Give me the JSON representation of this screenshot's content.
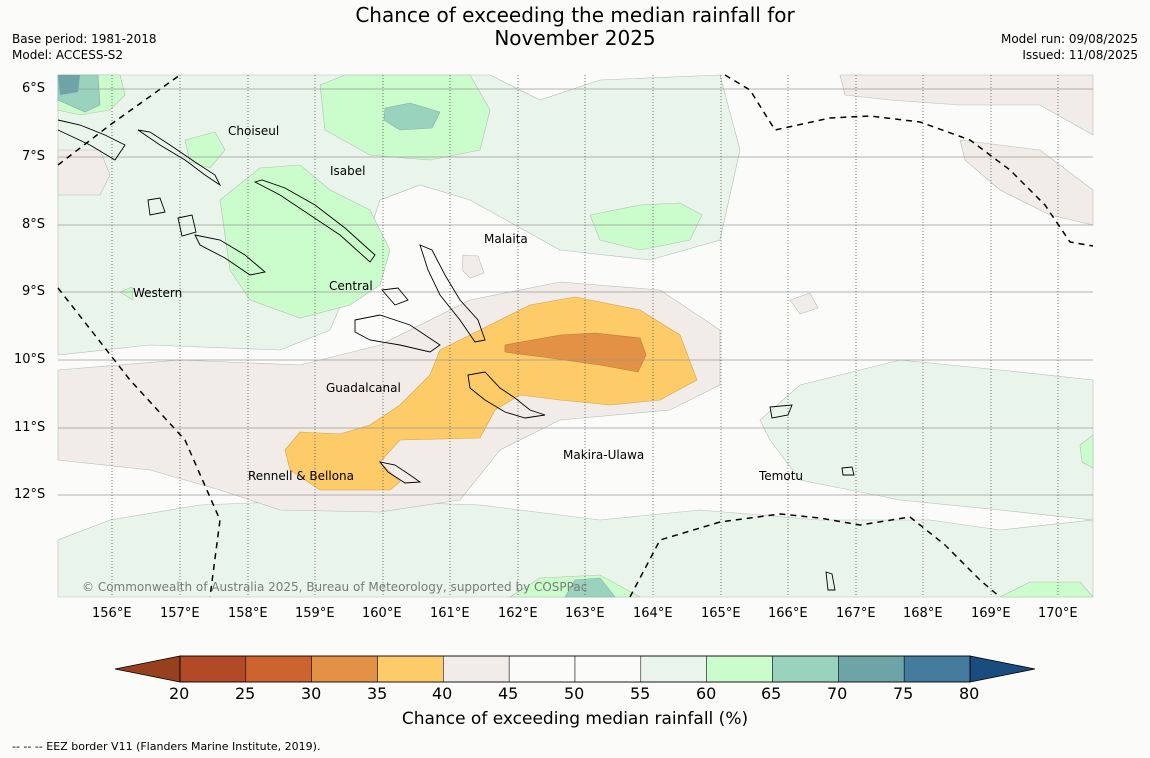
{
  "title": {
    "line1": "Chance of exceeding the median rainfall for",
    "line2": "November 2025"
  },
  "meta_left": {
    "base_period": "Base period: 1981-2018",
    "model": "Model: ACCESS-S2"
  },
  "meta_right": {
    "model_run": "Model run: 09/08/2025",
    "issued": "Issued: 11/08/2025"
  },
  "lat_labels": [
    "6°S",
    "7°S",
    "8°S",
    "9°S",
    "10°S",
    "11°S",
    "12°S"
  ],
  "lon_labels": [
    "156°E",
    "157°E",
    "158°E",
    "159°E",
    "160°E",
    "161°E",
    "162°E",
    "163°E",
    "164°E",
    "165°E",
    "166°E",
    "167°E",
    "168°E",
    "169°E",
    "170°E"
  ],
  "places": {
    "choiseul": "Choiseul",
    "isabel": "Isabel",
    "malaita": "Malaita",
    "western": "Western",
    "central": "Central",
    "guadalcanal": "Guadalcanal",
    "makira": "Makira-Ulawa",
    "rennell": "Rennell & Bellona",
    "temotu": "Temotu"
  },
  "copyright": "© Commonwealth of Australia 2025, Bureau of Meteorology, supported by COSPPac",
  "colorbar": {
    "ticks": [
      "20",
      "25",
      "30",
      "35",
      "40",
      "45",
      "50",
      "55",
      "60",
      "65",
      "70",
      "75",
      "80"
    ],
    "colors": [
      "#b34a27",
      "#cd632f",
      "#e39144",
      "#fdcb68",
      "#f1ece7",
      "#fbfcfa",
      "#fbfcfa",
      "#e9f5ea",
      "#cbfccb",
      "#9ad3bd",
      "#6ca4a8",
      "#437c9c"
    ],
    "under_color": "#96401e",
    "over_color": "#1a4c80",
    "label": "Chance of exceeding median rainfall (%)"
  },
  "footer": "--  --  -- EEZ border V11 (Flanders Marine Institute, 2019)."
}
